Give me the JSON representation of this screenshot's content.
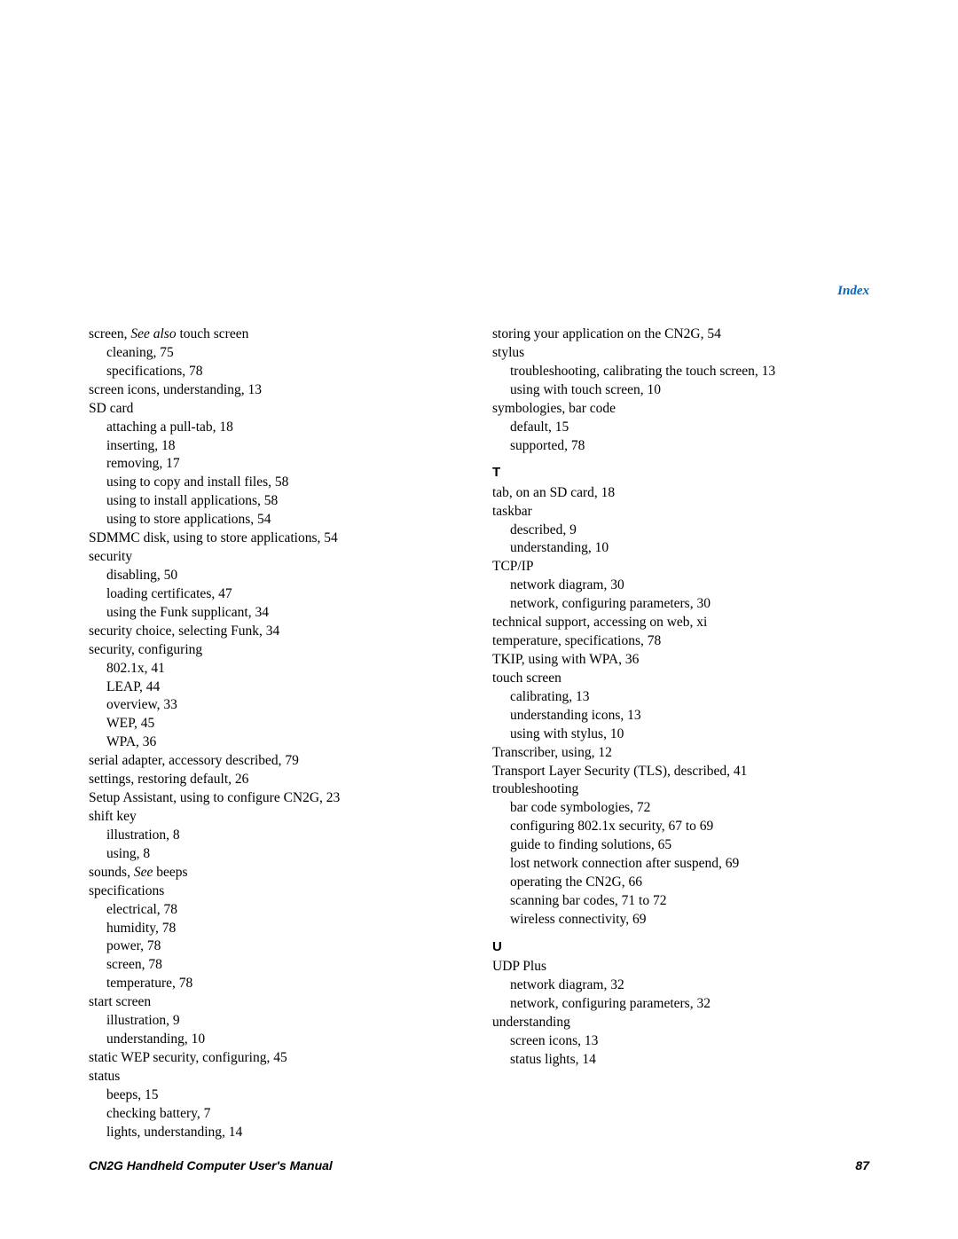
{
  "header": "Index",
  "footer": {
    "title": "CN2G Handheld Computer User's Manual",
    "pageNum": "87"
  },
  "col1": {
    "l0": "screen, ",
    "l0i": "See also ",
    "l0b": "touch screen",
    "l1": "cleaning, 75",
    "l2": "specifications, 78",
    "l3": "screen icons, understanding, 13",
    "l4": "SD card",
    "l5": "attaching a pull-tab, 18",
    "l6": "inserting, 18",
    "l7": "removing, 17",
    "l8": "using to copy and install files, 58",
    "l9": "using to install applications, 58",
    "l10": "using to store applications, 54",
    "l11": "SDMMC disk, using to store applications, 54",
    "l12": "security",
    "l13": "disabling, 50",
    "l14": "loading certificates, 47",
    "l15": "using the Funk supplicant, 34",
    "l16": "security choice, selecting Funk, 34",
    "l17": "security, configuring",
    "l18": "802.1x, 41",
    "l19": "LEAP, 44",
    "l20": "overview, 33",
    "l21": "WEP, 45",
    "l22": "WPA, 36",
    "l23": "serial adapter, accessory described, 79",
    "l24": "settings, restoring default, 26",
    "l25": "Setup Assistant, using to configure CN2G, 23",
    "l26": "shift key",
    "l27": "illustration, 8",
    "l28": "using, 8",
    "l29a": "sounds, ",
    "l29i": "See ",
    "l29b": "beeps",
    "l30": "specifications",
    "l31": "electrical, 78",
    "l32": "humidity, 78",
    "l33": "power, 78",
    "l34": "screen, 78",
    "l35": "temperature, 78",
    "l36": "start screen",
    "l37": "illustration, 9",
    "l38": "understanding, 10",
    "l39": "static WEP security, configuring, 45",
    "l40": "status",
    "l41": "beeps, 15",
    "l42": "checking battery, 7",
    "l43": "lights, understanding, 14"
  },
  "col2": {
    "r0": "storing your application on the CN2G, 54",
    "r1": "stylus",
    "r2": "troubleshooting, calibrating the touch screen, 13",
    "r3": "using with touch screen, 10",
    "r4": "symbologies, bar code",
    "r5": "default, 15",
    "r6": "supported, 78",
    "secT": "T",
    "r7": "tab, on an SD card, 18",
    "r8": "taskbar",
    "r9": "described, 9",
    "r10": "understanding, 10",
    "r11": "TCP/IP",
    "r12": "network diagram, 30",
    "r13": "network, configuring parameters, 30",
    "r14": "technical support, accessing on web, xi",
    "r15": "temperature, specifications, 78",
    "r16": "TKIP, using with WPA, 36",
    "r17": "touch screen",
    "r18": "calibrating, 13",
    "r19": "understanding icons, 13",
    "r20": "using with stylus, 10",
    "r21": "Transcriber, using, 12",
    "r22": "Transport Layer Security (TLS), described, 41",
    "r23": "troubleshooting",
    "r24": "bar code symbologies, 72",
    "r25": "configuring 802.1x security, 67 to 69",
    "r26": "guide to finding solutions, 65",
    "r27": "lost network connection after suspend, 69",
    "r28": "operating the CN2G, 66",
    "r29": "scanning bar codes, 71 to 72",
    "r30": "wireless connectivity, 69",
    "secU": "U",
    "r31": "UDP Plus",
    "r32": "network diagram, 32",
    "r33": "network, configuring parameters, 32",
    "r34": "understanding",
    "r35": "screen icons, 13",
    "r36": "status lights, 14"
  }
}
